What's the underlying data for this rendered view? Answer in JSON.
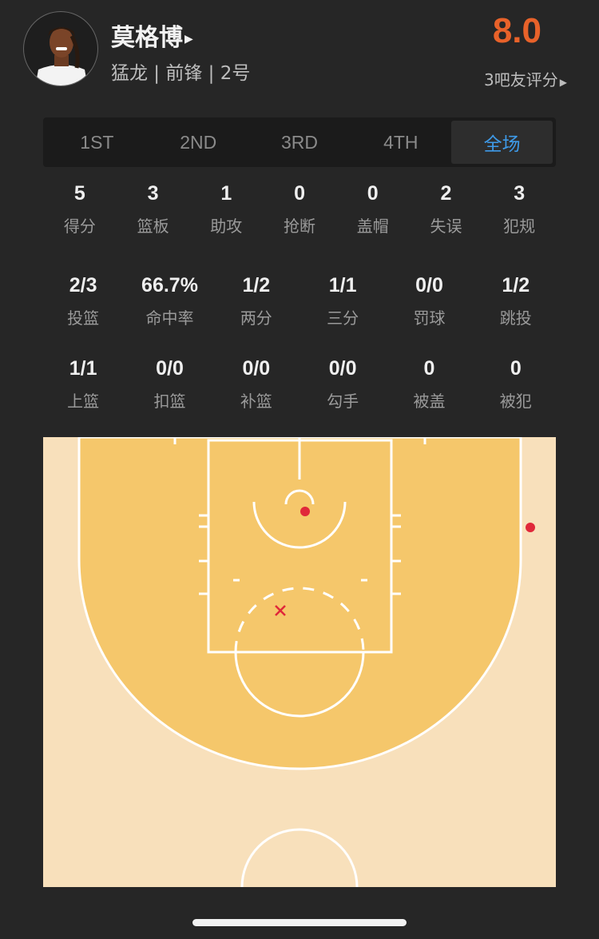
{
  "player": {
    "name": "莫格博",
    "info": "猛龙 | 前锋 | 2号",
    "rating": "8.0",
    "rating_count_label": "3吧友评分"
  },
  "tabs": [
    {
      "label": "1ST"
    },
    {
      "label": "2ND"
    },
    {
      "label": "3RD"
    },
    {
      "label": "4TH"
    },
    {
      "label": "全场",
      "active": true
    }
  ],
  "stats_row1": [
    {
      "v": "5",
      "l": "得分"
    },
    {
      "v": "3",
      "l": "篮板"
    },
    {
      "v": "1",
      "l": "助攻"
    },
    {
      "v": "0",
      "l": "抢断"
    },
    {
      "v": "0",
      "l": "盖帽"
    },
    {
      "v": "2",
      "l": "失误"
    },
    {
      "v": "3",
      "l": "犯规"
    }
  ],
  "stats_row2": [
    {
      "v": "2/3",
      "l": "投篮"
    },
    {
      "v": "66.7%",
      "l": "命中率"
    },
    {
      "v": "1/2",
      "l": "两分"
    },
    {
      "v": "1/1",
      "l": "三分"
    },
    {
      "v": "0/0",
      "l": "罚球"
    },
    {
      "v": "1/2",
      "l": "跳投"
    }
  ],
  "stats_row3": [
    {
      "v": "1/1",
      "l": "上篮"
    },
    {
      "v": "0/0",
      "l": "扣篮"
    },
    {
      "v": "0/0",
      "l": "补篮"
    },
    {
      "v": "0/0",
      "l": "勾手"
    },
    {
      "v": "0",
      "l": "被盖"
    },
    {
      "v": "0",
      "l": "被犯"
    }
  ],
  "shot_chart": {
    "shots": [
      {
        "result": "made"
      },
      {
        "result": "made"
      },
      {
        "result": "missed"
      }
    ],
    "colors": {
      "court_inside": "#f5c76b",
      "court_outside": "#f8e0bb",
      "lines": "#ffffff",
      "shot": "#e0283a"
    }
  },
  "colors": {
    "accent": "#3e9ae8",
    "rating": "#e8622a",
    "background": "#262626"
  }
}
